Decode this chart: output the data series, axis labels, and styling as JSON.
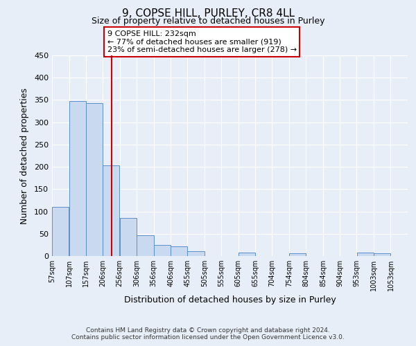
{
  "title": "9, COPSE HILL, PURLEY, CR8 4LL",
  "subtitle": "Size of property relative to detached houses in Purley",
  "xlabel": "Distribution of detached houses by size in Purley",
  "ylabel": "Number of detached properties",
  "bar_left_edges": [
    57,
    107,
    157,
    206,
    256,
    306,
    356,
    406,
    455,
    505,
    555,
    605,
    655,
    704,
    754,
    804,
    854,
    904,
    953,
    1003
  ],
  "bar_heights": [
    110,
    348,
    343,
    203,
    85,
    47,
    25,
    21,
    11,
    0,
    0,
    8,
    0,
    0,
    6,
    0,
    0,
    0,
    7,
    6
  ],
  "bar_widths": [
    50,
    50,
    49,
    50,
    50,
    50,
    50,
    49,
    50,
    50,
    50,
    50,
    49,
    50,
    50,
    50,
    50,
    49,
    50,
    50
  ],
  "bar_color": "#c9d9ef",
  "bar_edge_color": "#5b8fc9",
  "vline_x": 232,
  "vline_color": "#cc0000",
  "annotation_lines": [
    "9 COPSE HILL: 232sqm",
    "← 77% of detached houses are smaller (919)",
    "23% of semi-detached houses are larger (278) →"
  ],
  "ylim": [
    0,
    450
  ],
  "xlim_left": 57,
  "xlim_right": 1103,
  "tick_labels": [
    "57sqm",
    "107sqm",
    "157sqm",
    "206sqm",
    "256sqm",
    "306sqm",
    "356sqm",
    "406sqm",
    "455sqm",
    "505sqm",
    "555sqm",
    "605sqm",
    "655sqm",
    "704sqm",
    "754sqm",
    "804sqm",
    "854sqm",
    "904sqm",
    "953sqm",
    "1003sqm",
    "1053sqm"
  ],
  "tick_positions": [
    57,
    107,
    157,
    206,
    256,
    306,
    356,
    406,
    455,
    505,
    555,
    605,
    655,
    704,
    754,
    804,
    854,
    904,
    953,
    1003,
    1053
  ],
  "bg_color": "#e8eef7",
  "plot_bg_color": "#e8eef7",
  "grid_color": "#ffffff",
  "footer_lines": [
    "Contains HM Land Registry data © Crown copyright and database right 2024.",
    "Contains public sector information licensed under the Open Government Licence v3.0."
  ],
  "yticks": [
    0,
    50,
    100,
    150,
    200,
    250,
    300,
    350,
    400,
    450
  ]
}
